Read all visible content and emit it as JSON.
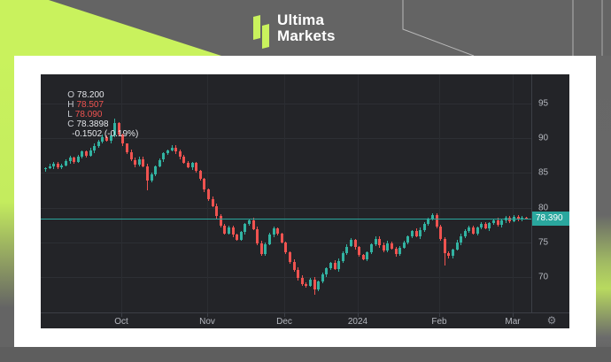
{
  "header": {
    "brand_line1": "Ultima",
    "brand_line2": "Markets"
  },
  "chart": {
    "ohlc_bar": {
      "o_label": "O",
      "o_value": "78.200",
      "h_label": "H",
      "h_value": "78.507",
      "l_label": "L",
      "l_value": "78.090",
      "c_label": "C",
      "c_value": "78.3898",
      "change": "-0.1502 (-0.19%)"
    },
    "price_label": "78.390",
    "gear_icon": "⚙"
  },
  "colors": {
    "up_candle": "#32b3a2",
    "down_candle": "#ef5350",
    "accent_teal": "#2aa79e",
    "lime": "#c9f25d",
    "panel_bg": "#232428",
    "header_gray": "#646464",
    "red_text": "#ef5350",
    "axis_text": "#b5b8bf"
  },
  "chart_data": {
    "type": "candlestick",
    "title": "",
    "y_axis": {
      "ticks": [
        95,
        90,
        85,
        80,
        75,
        70
      ],
      "visible_range": [
        66.8,
        97.2
      ],
      "grid": true
    },
    "x_axis": {
      "labels": [
        "Oct",
        "Nov",
        "Dec",
        "2024",
        "Feb",
        "Mar"
      ],
      "label_indices": [
        19,
        40,
        59,
        77,
        97,
        115
      ],
      "grid": true
    },
    "current_price": 78.39,
    "last_ohlc": {
      "open": 78.2,
      "high": 78.507,
      "low": 78.09,
      "close": 78.3898,
      "change": -0.1502,
      "change_pct": "-0.19%"
    },
    "first_open": 85.5,
    "closes": [
      85.7,
      85.9,
      86.3,
      85.8,
      86.1,
      86.7,
      87.2,
      86.6,
      87.4,
      88.1,
      87.5,
      88.2,
      88.9,
      89.5,
      90.2,
      89.6,
      90.4,
      92.2,
      90.5,
      89.2,
      88.0,
      86.9,
      86.2,
      87.0,
      86.0,
      83.9,
      84.8,
      85.9,
      86.9,
      87.8,
      88.3,
      88.6,
      88.1,
      87.3,
      86.5,
      85.8,
      86.4,
      85.3,
      84.1,
      82.6,
      81.2,
      80.2,
      78.8,
      77.4,
      76.3,
      77.2,
      76.1,
      75.4,
      76.5,
      77.6,
      78.2,
      76.9,
      74.9,
      73.3,
      74.7,
      76.1,
      77.0,
      76.2,
      75.0,
      73.6,
      72.2,
      71.0,
      69.9,
      69.0,
      68.7,
      69.6,
      68.2,
      69.3,
      70.4,
      71.3,
      72.0,
      71.2,
      72.3,
      73.4,
      74.4,
      75.3,
      74.3,
      73.2,
      72.6,
      73.6,
      74.7,
      75.5,
      74.6,
      73.8,
      74.9,
      74.1,
      73.3,
      74.2,
      75.0,
      75.9,
      76.6,
      75.9,
      76.8,
      77.6,
      78.3,
      78.9,
      77.3,
      75.5,
      73.5,
      73.0,
      74.0,
      75.0,
      75.9,
      76.6,
      77.1,
      76.3,
      77.1,
      77.7,
      77.0,
      77.8,
      78.2,
      77.5,
      78.1,
      78.5,
      78.0,
      78.7,
      78.3,
      78.54,
      78.39
    ],
    "wick_overrides": {
      "17": [
        0.6,
        0.3
      ],
      "25": [
        0.3,
        1.4
      ],
      "66": [
        0.4,
        0.7
      ],
      "98": [
        0.3,
        1.8
      ]
    }
  }
}
